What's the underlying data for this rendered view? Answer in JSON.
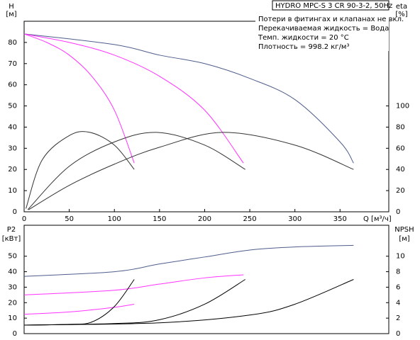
{
  "chart_data": [
    {
      "type": "line",
      "title": "HYDRO MPC-S 3 CR 90-3-2, 50Hz",
      "annotations": [
        "Потери в фитингах и клапанах не вкл.",
        "Перекачиваемая жидкость = Вода",
        "Темп. жидкости = 20 °C",
        "Плотность = 998.2 кг/м³"
      ],
      "xlabel": "Q [м³/ч]",
      "ylabel": "H",
      "ylabel_unit": "[м]",
      "y2label": "eta",
      "y2label_unit": "[%]",
      "xlim": [
        0,
        404
      ],
      "xticks": [
        0,
        50,
        100,
        150,
        200,
        250,
        300,
        350
      ],
      "ylim": [
        0,
        90
      ],
      "yticks": [
        0,
        10,
        20,
        30,
        40,
        50,
        60,
        70,
        80
      ],
      "y2lim": [
        0,
        180
      ],
      "y2ticks": [
        0,
        20,
        40,
        60,
        80,
        100
      ],
      "series": [
        {
          "color": "#4f5d8c",
          "x": [
            0,
            100,
            150,
            200,
            250,
            300,
            350,
            365
          ],
          "values": [
            84,
            79,
            74,
            70,
            63,
            53,
            33,
            23
          ]
        },
        {
          "color": "#ff33ff",
          "x": [
            0,
            50,
            100,
            150,
            200,
            243
          ],
          "values": [
            84,
            80,
            74,
            64,
            48,
            23
          ]
        },
        {
          "color": "#ff33ff",
          "x": [
            0,
            25,
            50,
            75,
            100,
            122
          ],
          "values": [
            84,
            80,
            74,
            64,
            48,
            23
          ]
        },
        {
          "color": "#333333",
          "axis": "y2",
          "x": [
            2,
            20,
            50,
            73,
            100,
            122
          ],
          "values": [
            3,
            49,
            72,
            75,
            63,
            40
          ]
        },
        {
          "color": "#333333",
          "axis": "y2",
          "x": [
            4,
            50,
            100,
            147,
            200,
            245
          ],
          "values": [
            2,
            43,
            66,
            75,
            63,
            40
          ]
        },
        {
          "color": "#333333",
          "axis": "y2",
          "x": [
            5,
            50,
            100,
            150,
            220,
            300,
            365
          ],
          "values": [
            2,
            25,
            45,
            61,
            75,
            63,
            40
          ]
        }
      ]
    },
    {
      "type": "line",
      "ylabel": "P2",
      "ylabel_unit": "[кВт]",
      "y2label": "NPSH",
      "y2label_unit": "[м]",
      "ylim": [
        0,
        70
      ],
      "yticks": [
        0,
        10,
        20,
        30,
        40,
        50
      ],
      "y2lim": [
        0,
        14
      ],
      "y2ticks": [
        0,
        2,
        4,
        6,
        8,
        10
      ],
      "series": [
        {
          "color": "#4f5d8c",
          "x": [
            0,
            100,
            150,
            200,
            250,
            300,
            365
          ],
          "values": [
            37,
            40,
            45,
            49.5,
            54,
            56,
            57
          ]
        },
        {
          "color": "#ff33ff",
          "x": [
            0,
            100,
            150,
            200,
            243
          ],
          "values": [
            25,
            28,
            32,
            36,
            38
          ]
        },
        {
          "color": "#ff33ff",
          "x": [
            0,
            50,
            100,
            122
          ],
          "values": [
            12.5,
            14,
            17,
            19
          ]
        },
        {
          "color": "#000000",
          "axis": "y2",
          "x": [
            0,
            50,
            75,
            100,
            122
          ],
          "values": [
            1.1,
            1.2,
            1.5,
            3.5,
            7
          ]
        },
        {
          "color": "#000000",
          "axis": "y2",
          "x": [
            0,
            100,
            150,
            200,
            245
          ],
          "values": [
            1.1,
            1.3,
            1.8,
            3.8,
            7
          ]
        },
        {
          "color": "#000000",
          "axis": "y2",
          "x": [
            0,
            150,
            250,
            300,
            365
          ],
          "values": [
            1.1,
            1.4,
            2.4,
            3.8,
            7
          ]
        }
      ]
    }
  ]
}
